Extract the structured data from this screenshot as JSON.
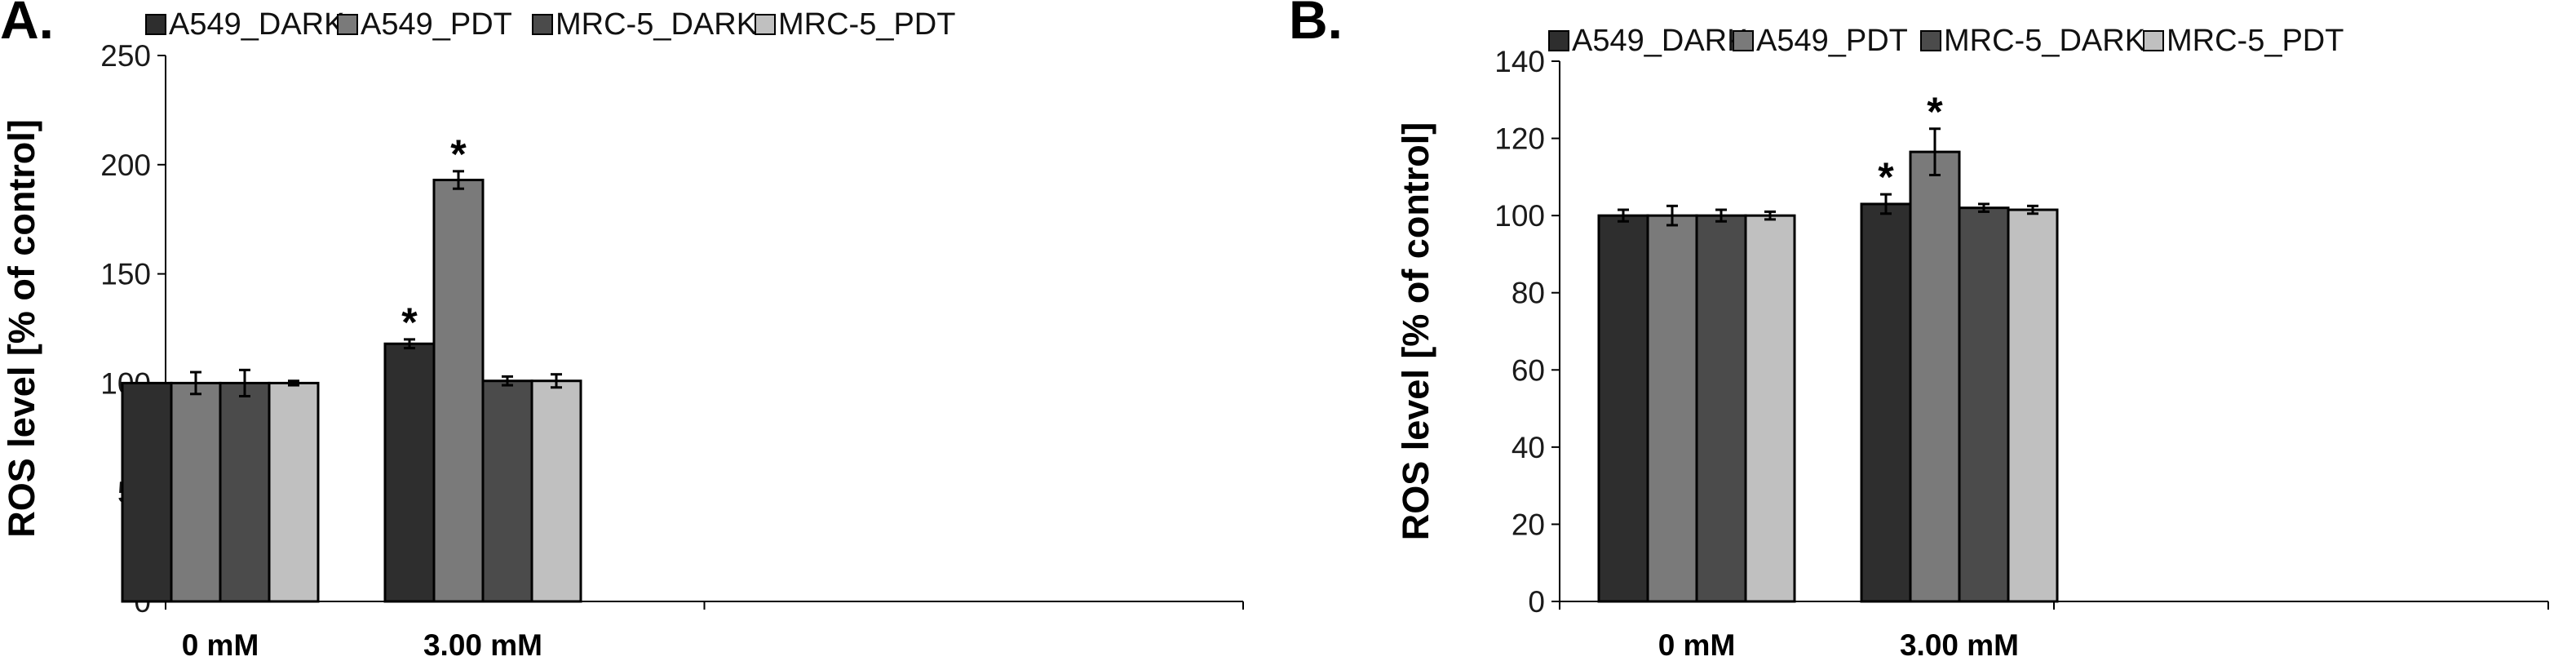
{
  "chart_data": [
    {
      "panel_label": "A.",
      "type": "bar",
      "categories": [
        "0 mM",
        "3.00 mM"
      ],
      "series": [
        {
          "name": "A549_DARK",
          "color": "#2e2e2e",
          "values": [
            100,
            118
          ],
          "errors": [
            0,
            2
          ],
          "significant": [
            false,
            true
          ]
        },
        {
          "name": "A549_PDT",
          "color": "#7a7a7a",
          "values": [
            100,
            193
          ],
          "errors": [
            5,
            4
          ],
          "significant": [
            false,
            true
          ]
        },
        {
          "name": "MRC-5_DARK",
          "color": "#4b4b4b",
          "values": [
            100,
            101
          ],
          "errors": [
            6,
            2
          ],
          "significant": [
            false,
            false
          ]
        },
        {
          "name": "MRC-5_PDT",
          "color": "#c0c0c0",
          "values": [
            100,
            101
          ],
          "errors": [
            1,
            3
          ],
          "significant": [
            false,
            false
          ]
        }
      ],
      "ylabel": "ROS level [% of control]",
      "ylim": [
        0,
        250
      ],
      "yticks": [
        0,
        50,
        100,
        150,
        200,
        250
      ],
      "legend_position": "top",
      "significance_marker": "*"
    },
    {
      "panel_label": "B.",
      "type": "bar",
      "categories": [
        "0 mM",
        "3.00 mM"
      ],
      "series": [
        {
          "name": "A549_DARK",
          "color": "#2e2e2e",
          "values": [
            100,
            103
          ],
          "errors": [
            1.5,
            2.5
          ],
          "significant": [
            false,
            true
          ]
        },
        {
          "name": "A549_PDT",
          "color": "#7a7a7a",
          "values": [
            100,
            116.5
          ],
          "errors": [
            2.5,
            6
          ],
          "significant": [
            false,
            true
          ]
        },
        {
          "name": "MRC-5_DARK",
          "color": "#4b4b4b",
          "values": [
            100,
            102
          ],
          "errors": [
            1.5,
            1
          ],
          "significant": [
            false,
            false
          ]
        },
        {
          "name": "MRC-5_PDT",
          "color": "#c0c0c0",
          "values": [
            100,
            101.5
          ],
          "errors": [
            1,
            1
          ],
          "significant": [
            false,
            false
          ]
        }
      ],
      "ylabel": "ROS level [% of control]",
      "ylim": [
        0,
        140
      ],
      "yticks": [
        0,
        20,
        40,
        60,
        80,
        100,
        120,
        140
      ],
      "legend_position": "top",
      "significance_marker": "*"
    }
  ]
}
